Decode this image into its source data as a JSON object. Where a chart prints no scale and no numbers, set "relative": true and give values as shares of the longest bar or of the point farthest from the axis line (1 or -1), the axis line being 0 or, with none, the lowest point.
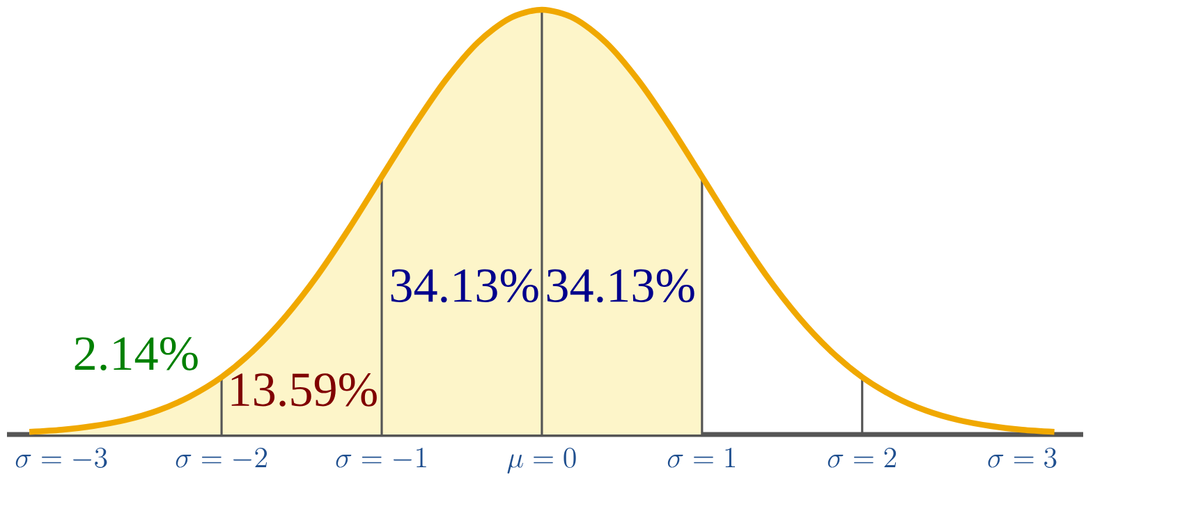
{
  "chart_data": {
    "type": "line",
    "relative": true,
    "series": [
      {
        "type": "area",
        "color": "#fdf5c9",
        "x": [
          -3.2,
          -3.0,
          -2.8,
          -2.6,
          -2.4,
          -2.2,
          -2.0,
          -1.8,
          -1.6,
          -1.4,
          -1.2,
          -1.0,
          -0.8,
          -0.6,
          -0.4,
          -0.2,
          0,
          0.2,
          0.4,
          0.6,
          0.8,
          1.0
        ],
        "values": [
          0.006,
          0.011,
          0.02,
          0.034,
          0.056,
          0.089,
          0.135,
          0.198,
          0.278,
          0.375,
          0.487,
          0.607,
          0.726,
          0.835,
          0.923,
          0.98,
          1,
          0.98,
          0.923,
          0.835,
          0.726,
          0.607
        ]
      },
      {
        "color": "#f0a800",
        "x": [
          -3.2,
          -3.0,
          -2.8,
          -2.6,
          -2.4,
          -2.2,
          -2.0,
          -1.8,
          -1.6,
          -1.4,
          -1.2,
          -1.0,
          -0.8,
          -0.6,
          -0.4,
          -0.2,
          0,
          0.2,
          0.4,
          0.6,
          0.8,
          1.0,
          1.2,
          1.4,
          1.6,
          1.8,
          2.0,
          2.2,
          2.4,
          2.6,
          2.8,
          3.0,
          3.2
        ],
        "values": [
          0.006,
          0.011,
          0.02,
          0.034,
          0.056,
          0.089,
          0.135,
          0.198,
          0.278,
          0.375,
          0.487,
          0.607,
          0.726,
          0.835,
          0.923,
          0.98,
          1,
          0.98,
          0.923,
          0.835,
          0.726,
          0.607,
          0.487,
          0.375,
          0.278,
          0.198,
          0.135,
          0.089,
          0.056,
          0.034,
          0.02,
          0.011,
          0.006
        ]
      }
    ],
    "xlim": [
      -3.34,
      3.38
    ],
    "xticks": [
      {
        "value": -3,
        "label": "\\sigma = -3"
      },
      {
        "value": -2,
        "label": "\\sigma = -2"
      },
      {
        "value": -1,
        "label": "\\sigma = -1"
      },
      {
        "value": 0,
        "label": "\\mu = 0"
      },
      {
        "value": 1,
        "label": "\\sigma = 1"
      },
      {
        "value": 2,
        "label": "\\sigma = 2"
      },
      {
        "value": 3,
        "label": "\\sigma = 3"
      }
    ],
    "ref_lines": [
      {
        "axis": "x",
        "value": -2,
        "color": "#555555"
      },
      {
        "axis": "x",
        "value": -1,
        "color": "#555555"
      },
      {
        "axis": "x",
        "value": 0,
        "color": "#555555"
      },
      {
        "axis": "x",
        "value": 1,
        "color": "#555555"
      },
      {
        "axis": "x",
        "value": 2,
        "color": "#555555"
      }
    ],
    "annotations": [
      "2.14%",
      "13.59%",
      "34.13%",
      "34.13%"
    ]
  }
}
